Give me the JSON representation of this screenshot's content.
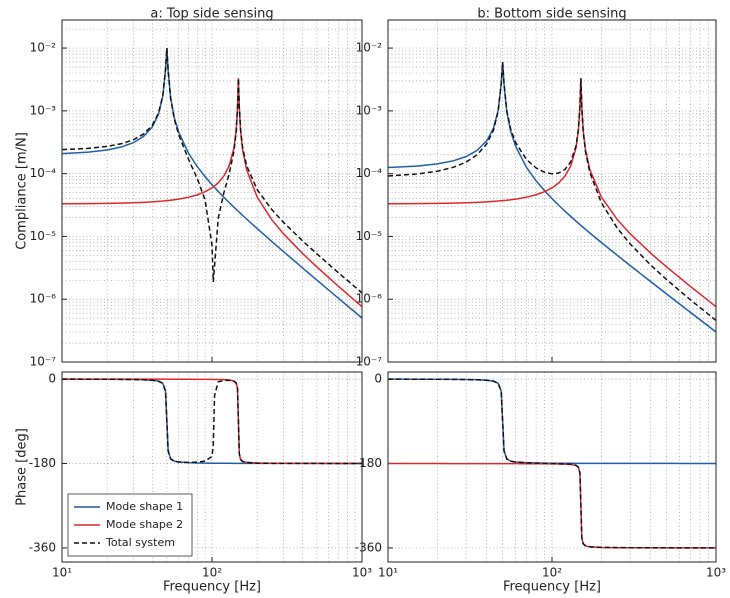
{
  "chart_data": [
    {
      "type": "line",
      "title": "a: Top side sensing",
      "ylabel": "Compliance [m/N]",
      "xscale": "log",
      "yscale": "log",
      "grid": true,
      "minor_grid": true,
      "xlim": [
        10,
        1000
      ],
      "xticks": [
        10,
        100,
        1000
      ],
      "ylim": [
        1e-07,
        0.028
      ],
      "yticks": [
        {
          "value": 1e-07,
          "label": "10⁻⁷"
        },
        {
          "value": 1e-06,
          "label": "10⁻⁶"
        },
        {
          "value": 1e-05,
          "label": "10⁻⁵"
        },
        {
          "value": 0.0001,
          "label": "10⁻⁴"
        },
        {
          "value": 0.001,
          "label": "10⁻³"
        },
        {
          "value": 0.01,
          "label": "10⁻²"
        }
      ],
      "x": [
        10,
        15,
        20,
        25,
        30,
        35,
        40,
        44,
        47,
        49,
        50,
        51,
        53,
        56,
        60,
        70,
        80,
        90,
        100,
        102,
        104,
        110,
        120,
        130,
        140,
        145,
        148,
        150,
        152,
        155,
        160,
        170,
        200,
        250,
        300,
        400,
        500,
        700,
        1000
      ],
      "series": [
        {
          "color": "#1f5fa8",
          "dash": false,
          "values": [
            0.0002083,
            0.0002198,
            0.0002381,
            0.0002667,
            0.0003125,
            0.0003922,
            0.0005556,
            0.0008865,
            0.001718,
            0.004527,
            0.01,
            0.00442,
            0.001618,
            0.0007862,
            0.0004545,
            0.0002083,
            0.0001282,
            8.929e-05,
            6.667e-05,
            6.326e-05,
            6.013e-05,
            5.208e-05,
            4.202e-05,
            3.472e-05,
            2.924e-05,
            2.699e-05,
            2.577e-05,
            2.5e-05,
            2.427e-05,
            2.323e-05,
            2.165e-05,
            1.894e-05,
            1.333e-05,
            8.333e-06,
            5.714e-06,
            3.175e-06,
            2.02e-06,
            1.026e-06,
            5.013e-07
          ]
        },
        {
          "color": "#e0262b",
          "dash": false,
          "values": [
            3.315e-05,
            3.333e-05,
            3.36e-05,
            3.394e-05,
            3.438e-05,
            3.49e-05,
            3.553e-05,
            3.611e-05,
            3.659e-05,
            3.694e-05,
            3.713e-05,
            3.731e-05,
            3.771e-05,
            3.834e-05,
            3.929e-05,
            4.219e-05,
            4.612e-05,
            5.156e-05,
            5.94e-05,
            6.138e-05,
            6.355e-05,
            7.139e-05,
            9.167e-05,
            0.0001326,
            0.000256,
            0.000498,
            0.001167,
            0.0033,
            0.00115,
            0.0004813,
            0.0002395,
            0.000116,
            4.243e-05,
            1.856e-05,
            1.1e-05,
            5.4e-06,
            3.264e-06,
            1.588e-06,
            7.596e-07
          ]
        },
        {
          "color": "#111111",
          "dash": true,
          "values": [
            0.0002415,
            0.0002531,
            0.0002717,
            0.0003006,
            0.0003469,
            0.0004271,
            0.0005911,
            0.0009226,
            0.001755,
            0.00456,
            0.01,
            0.00439,
            0.00158,
            0.0007479,
            0.0004152,
            0.0001661,
            8.21e-05,
            3.773e-05,
            7.27e-06,
            1.88e-06,
            3.42e-06,
            1.931e-05,
            4.965e-05,
            9.79e-05,
            0.0002268,
            0.000471,
            0.001142,
            0.0033,
            0.001174,
            0.0005045,
            0.0002612,
            0.0001349,
            5.576e-05,
            2.689e-05,
            1.671e-05,
            8.575e-06,
            5.284e-06,
            2.614e-06,
            1.261e-06
          ]
        }
      ]
    },
    {
      "type": "line",
      "ylabel": "Phase [deg]",
      "xlabel": "Frequency [Hz]",
      "xscale": "log",
      "yscale": "linear",
      "grid": true,
      "minor_grid": true,
      "legend": "lower left",
      "xlim": [
        10,
        1000
      ],
      "xticks": [
        {
          "value": 10,
          "label": "10¹"
        },
        {
          "value": 100,
          "label": "10²"
        },
        {
          "value": 1000,
          "label": "10³"
        }
      ],
      "ylim": [
        -390,
        15
      ],
      "yticks": [
        0,
        -180,
        -360
      ],
      "x": [
        10,
        15,
        20,
        25,
        30,
        35,
        40,
        44,
        47,
        49,
        50,
        51,
        53,
        56,
        60,
        70,
        80,
        90,
        100,
        102,
        104,
        110,
        120,
        130,
        140,
        145,
        148,
        150,
        152,
        155,
        160,
        170,
        200,
        250,
        300,
        400,
        500,
        700,
        1000
      ],
      "series": [
        {
          "name": "Mode shape 1",
          "color": "#1f5fa8",
          "dash": false,
          "values": [
            -0.2,
            -0.4,
            -0.5,
            -0.6,
            -1.1,
            -1.6,
            -2.5,
            -4.5,
            -9.2,
            -26.3,
            -90,
            -153.2,
            -170.3,
            -175,
            -176.9,
            -178.3,
            -178.9,
            -179.2,
            -179.4,
            -179.4,
            -179.4,
            -179.5,
            -179.6,
            -179.6,
            -179.7,
            -179.7,
            -179.7,
            -179.7,
            -179.7,
            -179.7,
            -179.8,
            -179.8,
            -179.8,
            -179.9,
            -179.9,
            -179.9,
            -179.9,
            -180,
            -180
          ]
        },
        {
          "name": "Mode shape 2",
          "color": "#e0262b",
          "dash": false,
          "values": [
            -0.1,
            -0.1,
            -0.1,
            -0.2,
            -0.2,
            -0.2,
            -0.3,
            -0.3,
            -0.3,
            -0.3,
            -0.3,
            -0.3,
            -0.4,
            -0.4,
            -0.4,
            -0.5,
            -0.6,
            -0.7,
            -0.8,
            -0.9,
            -0.9,
            -1.0,
            -1.3,
            -2.0,
            -4.1,
            -8.4,
            -20.4,
            -90,
            -159.3,
            -171.3,
            -175.6,
            -177.7,
            -179,
            -179.5,
            -179.6,
            -179.8,
            -179.8,
            -179.9,
            -179.9
          ]
        },
        {
          "name": "Total system",
          "color": "#111111",
          "dash": true,
          "values": [
            -0.2,
            -0.4,
            -0.5,
            -0.6,
            -1.1,
            -1.6,
            -2.5,
            -4.5,
            -9.2,
            -26.3,
            -90,
            -153.2,
            -170.3,
            -175,
            -176.9,
            -178,
            -177,
            -175,
            -165,
            -140,
            -35,
            -6,
            -3,
            -2.5,
            -4.5,
            -8.6,
            -20.5,
            -90,
            -159.4,
            -171.4,
            -175.7,
            -177.9,
            -179.3,
            -179.7,
            -179.8,
            -179.9,
            -179.9,
            -180,
            -180
          ]
        }
      ]
    },
    {
      "type": "line",
      "title": "b: Bottom side sensing",
      "xscale": "log",
      "yscale": "log",
      "grid": true,
      "minor_grid": true,
      "xlim": [
        10,
        1000
      ],
      "xticks": [
        10,
        100,
        1000
      ],
      "ylim": [
        1e-07,
        0.028
      ],
      "yticks": [
        {
          "value": 1e-07,
          "label": "10⁻⁷"
        },
        {
          "value": 1e-06,
          "label": "10⁻⁶"
        },
        {
          "value": 1e-05,
          "label": "10⁻⁵"
        },
        {
          "value": 0.0001,
          "label": "10⁻⁴"
        },
        {
          "value": 0.001,
          "label": "10⁻³"
        },
        {
          "value": 0.01,
          "label": "10⁻²"
        }
      ],
      "x": [
        10,
        15,
        20,
        25,
        30,
        35,
        40,
        44,
        47,
        49,
        50,
        51,
        53,
        56,
        60,
        70,
        80,
        90,
        100,
        102,
        104,
        110,
        120,
        130,
        140,
        145,
        148,
        150,
        152,
        155,
        160,
        170,
        200,
        250,
        300,
        400,
        500,
        700,
        1000
      ],
      "series": [
        {
          "color": "#1f5fa8",
          "dash": false,
          "values": [
            0.000125,
            0.0001319,
            0.0001429,
            0.00016,
            0.0001875,
            0.0002353,
            0.0003333,
            0.0005319,
            0.001031,
            0.002716,
            0.006,
            0.002652,
            0.000971,
            0.0004717,
            0.0002727,
            0.000125,
            7.69e-05,
            5.357e-05,
            4e-05,
            3.796e-05,
            3.608e-05,
            3.125e-05,
            2.521e-05,
            2.083e-05,
            1.754e-05,
            1.619e-05,
            1.546e-05,
            1.5e-05,
            1.456e-05,
            1.394e-05,
            1.299e-05,
            1.136e-05,
            8e-06,
            5e-06,
            3.429e-06,
            1.905e-06,
            1.212e-06,
            6.15e-07,
            3.008e-07
          ]
        },
        {
          "color": "#e0262b",
          "dash": false,
          "values": [
            3.315e-05,
            3.333e-05,
            3.36e-05,
            3.394e-05,
            3.438e-05,
            3.49e-05,
            3.553e-05,
            3.611e-05,
            3.659e-05,
            3.694e-05,
            3.713e-05,
            3.731e-05,
            3.771e-05,
            3.834e-05,
            3.929e-05,
            4.219e-05,
            4.612e-05,
            5.156e-05,
            5.94e-05,
            6.138e-05,
            6.355e-05,
            7.139e-05,
            9.167e-05,
            0.0001326,
            0.000256,
            0.000498,
            0.001167,
            0.0033,
            0.00115,
            0.0004813,
            0.0002395,
            0.000116,
            4.243e-05,
            1.856e-05,
            1.1e-05,
            5.4e-06,
            3.264e-06,
            1.588e-06,
            7.596e-07
          ]
        },
        {
          "color": "#111111",
          "dash": true,
          "values": [
            9.185e-05,
            9.86e-05,
            0.0001093,
            0.0001261,
            0.0001531,
            0.0002004,
            0.0002978,
            0.0004958,
            0.000994,
            0.00268,
            0.006,
            0.002689,
            0.001009,
            0.00051,
            0.000312,
            0.0001672,
            0.000123,
            0.0001051,
            9.94e-05,
            9.934e-05,
            9.963e-05,
            0.0001026,
            0.0001169,
            0.0001534,
            0.0002735,
            0.000514,
            0.00118,
            0.0033,
            0.001135,
            0.0004674,
            0.0002265,
            0.0001046,
            3.443e-05,
            1.356e-05,
            7.571e-06,
            3.495e-06,
            2.052e-06,
            9.73e-07,
            4.588e-07
          ]
        }
      ]
    },
    {
      "type": "line",
      "xlabel": "Frequency [Hz]",
      "xscale": "log",
      "yscale": "linear",
      "grid": true,
      "minor_grid": true,
      "xlim": [
        10,
        1000
      ],
      "xticks": [
        {
          "value": 10,
          "label": "10¹"
        },
        {
          "value": 100,
          "label": "10²"
        },
        {
          "value": 1000,
          "label": "10³"
        }
      ],
      "ylim": [
        -390,
        15
      ],
      "yticks": [
        0,
        -180,
        -360
      ],
      "x": [
        10,
        15,
        20,
        25,
        30,
        35,
        40,
        44,
        47,
        49,
        50,
        51,
        53,
        56,
        60,
        70,
        80,
        90,
        100,
        102,
        104,
        110,
        120,
        130,
        140,
        145,
        148,
        150,
        152,
        155,
        160,
        170,
        200,
        250,
        300,
        400,
        500,
        700,
        1000
      ],
      "series": [
        {
          "color": "#1f5fa8",
          "dash": false,
          "values": [
            -0.2,
            -0.4,
            -0.5,
            -0.6,
            -1.1,
            -1.6,
            -2.5,
            -4.5,
            -9.2,
            -26.3,
            -90,
            -153.2,
            -170.3,
            -175,
            -176.9,
            -178.3,
            -178.9,
            -179.2,
            -179.4,
            -179.4,
            -179.4,
            -179.5,
            -179.6,
            -179.6,
            -179.7,
            -179.7,
            -179.7,
            -179.7,
            -179.7,
            -179.7,
            -179.8,
            -179.8,
            -179.8,
            -179.9,
            -179.9,
            -179.9,
            -179.9,
            -180,
            -180
          ]
        },
        {
          "color": "#e0262b",
          "dash": false,
          "values": [
            -180.1,
            -180.1,
            -180.1,
            -180.2,
            -180.2,
            -180.2,
            -180.3,
            -180.3,
            -180.3,
            -180.3,
            -180.3,
            -180.3,
            -180.4,
            -180.4,
            -180.4,
            -180.5,
            -180.6,
            -180.7,
            -180.8,
            -180.9,
            -180.9,
            -181,
            -181.3,
            -182,
            -184.1,
            -188.4,
            -200.4,
            -270,
            -339.3,
            -351.3,
            -355.6,
            -357.7,
            -359,
            -359.5,
            -359.6,
            -359.8,
            -359.8,
            -359.9,
            -359.9
          ]
        },
        {
          "color": "#111111",
          "dash": true,
          "values": [
            -0.2,
            -0.4,
            -0.5,
            -0.6,
            -1.1,
            -1.6,
            -2.5,
            -4.5,
            -9.2,
            -26.3,
            -90,
            -153.2,
            -170.3,
            -175,
            -177,
            -178.5,
            -179.3,
            -179.8,
            -180.2,
            -180.3,
            -180.3,
            -180.5,
            -180.9,
            -181.6,
            -183.8,
            -188.1,
            -200.1,
            -270,
            -339,
            -351,
            -355.4,
            -357.5,
            -358.8,
            -359.4,
            -359.5,
            -359.7,
            -359.7,
            -359.9,
            -359.9
          ]
        }
      ]
    }
  ]
}
